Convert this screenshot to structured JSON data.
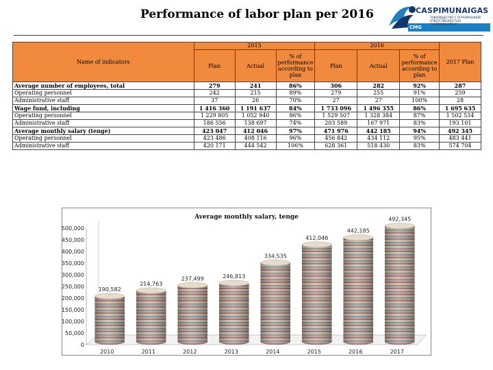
{
  "header": {
    "title": "Performance of labor plan per 2016",
    "logo_text": "CASPIMUNAIGAS",
    "logo_sub": "ТОВАРИЩЕСТВО С ОГРАНИЧЕННОЙ ОТВЕТСТВЕННОСТЬЮ \"КАСПИМУНАЙГАЗ\"",
    "logo_cmg": "CMG"
  },
  "colors": {
    "header_fill": "#f28a3d",
    "logo_blue": "#13366b"
  },
  "table": {
    "name_header": "Name of indicators",
    "year_2015": "2015",
    "year_2016": "2016",
    "plan": "Plan",
    "actual": "Actual",
    "perf": "% of performance according to plan",
    "plan_2017": "2017 Plan",
    "rows": [
      {
        "name": " Average number of employees, total",
        "p15": "279",
        "a15": "241",
        "pc15": "86%",
        "p16": "306",
        "a16": "282",
        "pc16": "92%",
        "p17": "287",
        "bold": true
      },
      {
        "name": "Operating personnel",
        "p15": "242",
        "a15": "215",
        "pc15": "89%",
        "p16": "279",
        "a16": "255",
        "pc16": "91%",
        "p17": "259",
        "bold": false
      },
      {
        "name": "Administrative staff",
        "p15": "37",
        "a15": "26",
        "pc15": "70%",
        "p16": "27",
        "a16": "27",
        "pc16": "100%",
        "p17": "28",
        "bold": false
      },
      {
        "name": "Wage fund, including",
        "p15": "1 416 360",
        "a15": "1 191 637",
        "pc15": "84%",
        "p16": "1 733 096",
        "a16": "1 496 355",
        "pc16": "86%",
        "p17": "1 695 635",
        "bold": true
      },
      {
        "name": "Operating personnel",
        "p15": "1 229 805",
        "a15": "1 052 940",
        "pc15": "86%",
        "p16": "1 529 507",
        "a16": "1 328 384",
        "pc16": "87%",
        "p17": "1 502 534",
        "bold": false
      },
      {
        "name": "Administrative staff",
        "p15": "186 556",
        "a15": "138 697",
        "pc15": "74%",
        "p16": "203 589",
        "a16": "167 971",
        "pc16": "83%",
        "p17": "193 101",
        "bold": false
      },
      {
        "name": " Average monthly salary (tenge)",
        "p15": "423 047",
        "a15": "412 046",
        "pc15": "97%",
        "p16": "471 976",
        "a16": "442 185",
        "pc16": "94%",
        "p17": "492 345",
        "bold": true
      },
      {
        "name": "Operating personnel",
        "p15": "423 486",
        "a15": "408 116",
        "pc15": "96%",
        "p16": "456 842",
        "a16": "434 112",
        "pc16": "95%",
        "p17": "483 441",
        "bold": false
      },
      {
        "name": "Administrative staff",
        "p15": "420 171",
        "a15": "444 542",
        "pc15": "106%",
        "p16": "628 361",
        "a16": "518 430",
        "pc16": "83%",
        "p17": "574 704",
        "bold": false
      }
    ]
  },
  "chart_data": {
    "type": "bar",
    "title": "Average monthly salary,  tenge",
    "categories": [
      "2010",
      "2011",
      "2012",
      "2013",
      "2014",
      "2015",
      "2016",
      "2017"
    ],
    "values": [
      190582,
      214763,
      237499,
      246813,
      334535,
      412046,
      442185,
      492345
    ],
    "value_labels": [
      "190,582",
      "214,763",
      "237,499",
      "246,813",
      "334,535",
      "412,046",
      "442,185",
      "492,345"
    ],
    "yticks": [
      "0",
      "50,000",
      "100,000",
      "150,000",
      "200,000",
      "250,000",
      "300,000",
      "350,000",
      "400,000",
      "450,000",
      "500,000"
    ],
    "ylim": [
      0,
      500000
    ],
    "style": "3d-cylinder",
    "grid": false,
    "legend": "none"
  }
}
